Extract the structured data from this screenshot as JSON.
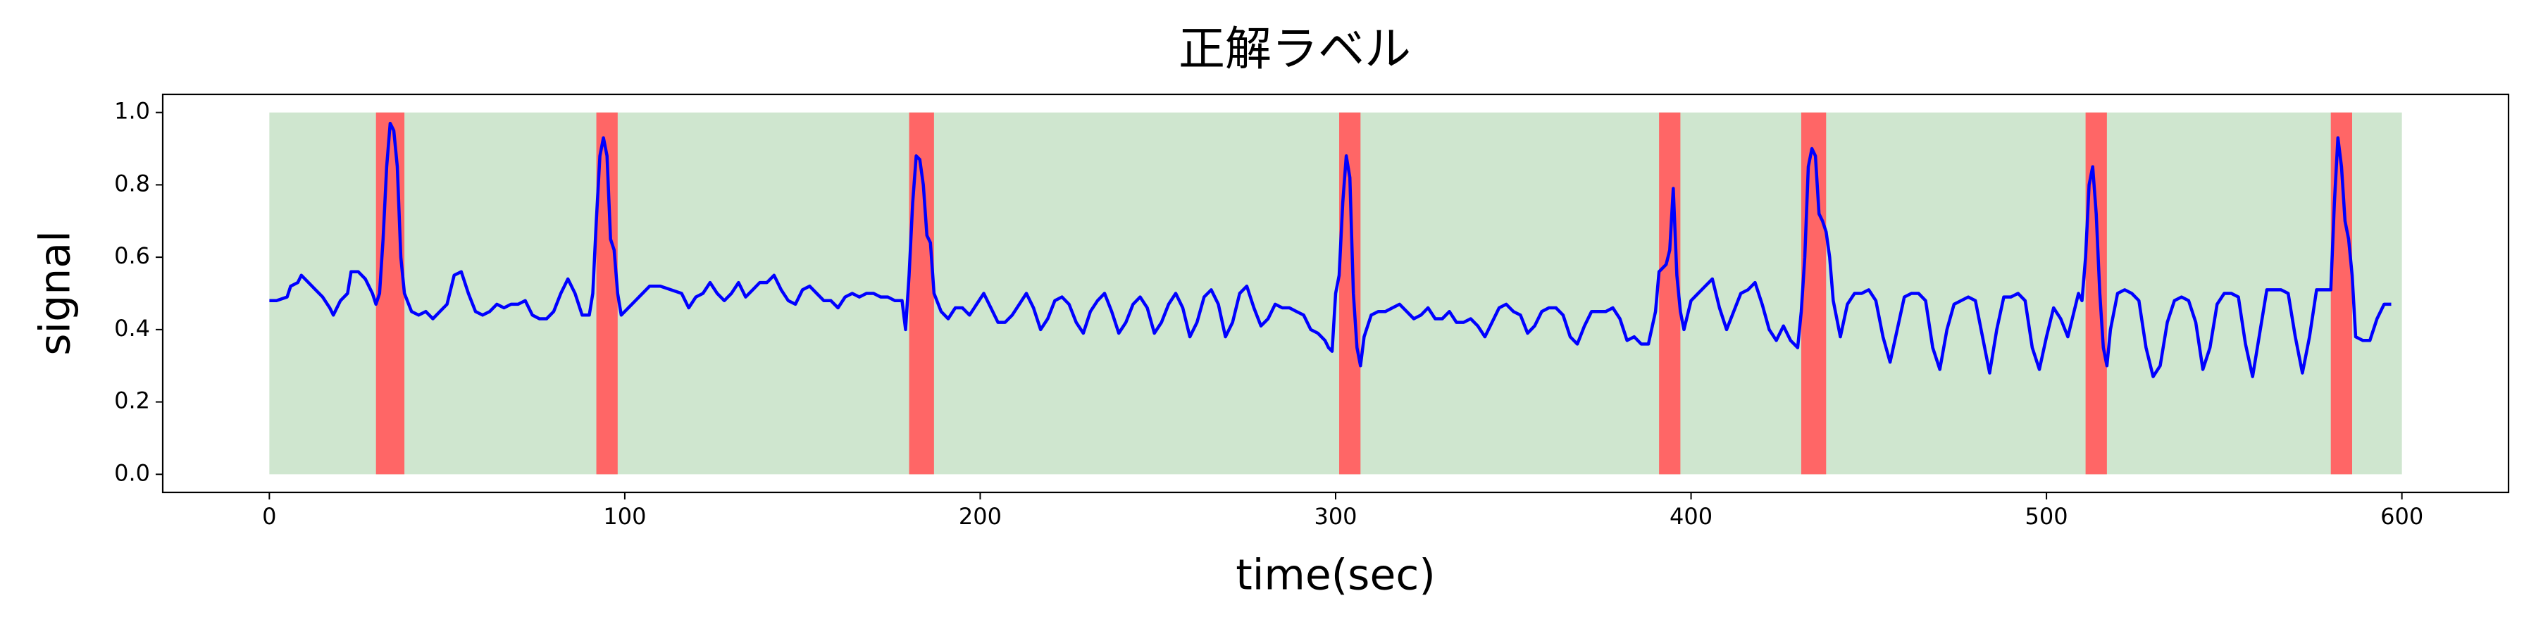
{
  "chart_data": {
    "type": "line",
    "title": "正解ラベル",
    "x_label": "time(sec)",
    "y_label": "signal",
    "xlim": [
      -30,
      630
    ],
    "ylim": [
      -0.05,
      1.05
    ],
    "xticks": [
      0,
      100,
      200,
      300,
      400,
      500,
      600
    ],
    "yticks": [
      {
        "value": 0,
        "label": "0.0"
      },
      0.2,
      0.4,
      0.6,
      0.8,
      {
        "value": 1,
        "label": "1.0"
      }
    ],
    "span_bottom": 0,
    "span_top": 1,
    "normal_span": [
      0,
      600
    ],
    "normal_color": "#cfe6cf",
    "anomaly_spans": [
      [
        30,
        38
      ],
      [
        92,
        98
      ],
      [
        180,
        187
      ],
      [
        301,
        307
      ],
      [
        391,
        397
      ],
      [
        431,
        438
      ],
      [
        511,
        517
      ],
      [
        580,
        586
      ]
    ],
    "anomaly_color": "#ff6666",
    "x": [
      0,
      2,
      5,
      6,
      8,
      9,
      11,
      13,
      15,
      17,
      18,
      20,
      22,
      23,
      25,
      27,
      29,
      30,
      31,
      32,
      33,
      34,
      35,
      36,
      37,
      38,
      40,
      42,
      44,
      46,
      48,
      50,
      52,
      54,
      56,
      58,
      60,
      62,
      64,
      66,
      68,
      70,
      72,
      74,
      76,
      78,
      80,
      82,
      84,
      86,
      88,
      90,
      91,
      92,
      93,
      94,
      95,
      96,
      97,
      98,
      99,
      101,
      103,
      105,
      107,
      110,
      113,
      116,
      118,
      120,
      122,
      124,
      126,
      128,
      130,
      132,
      134,
      136,
      138,
      140,
      142,
      144,
      146,
      148,
      150,
      152,
      154,
      156,
      158,
      160,
      162,
      164,
      166,
      168,
      170,
      172,
      174,
      176,
      178,
      179,
      180,
      181,
      182,
      183,
      184,
      185,
      186,
      187,
      189,
      191,
      193,
      195,
      197,
      199,
      201,
      203,
      205,
      207,
      209,
      211,
      213,
      215,
      217,
      219,
      221,
      223,
      225,
      227,
      229,
      231,
      233,
      235,
      237,
      239,
      241,
      243,
      245,
      247,
      249,
      251,
      253,
      255,
      257,
      259,
      261,
      263,
      265,
      267,
      269,
      271,
      273,
      275,
      277,
      279,
      281,
      283,
      285,
      287,
      289,
      291,
      293,
      295,
      297,
      298,
      299,
      300,
      301,
      302,
      303,
      304,
      305,
      306,
      307,
      308,
      310,
      312,
      314,
      316,
      318,
      320,
      322,
      324,
      326,
      328,
      330,
      332,
      334,
      336,
      338,
      340,
      342,
      344,
      346,
      348,
      350,
      352,
      354,
      356,
      358,
      360,
      362,
      364,
      366,
      368,
      370,
      372,
      374,
      376,
      378,
      380,
      382,
      384,
      386,
      388,
      390,
      391,
      393,
      394,
      395,
      396,
      397,
      398,
      400,
      402,
      404,
      406,
      408,
      410,
      412,
      414,
      416,
      418,
      420,
      422,
      424,
      426,
      428,
      430,
      431,
      432,
      433,
      434,
      435,
      436,
      437,
      438,
      439,
      440,
      442,
      444,
      446,
      448,
      450,
      452,
      454,
      456,
      458,
      460,
      462,
      464,
      466,
      468,
      470,
      472,
      474,
      476,
      478,
      480,
      482,
      484,
      486,
      488,
      490,
      492,
      494,
      496,
      498,
      500,
      502,
      504,
      506,
      508,
      509,
      510,
      511,
      512,
      513,
      514,
      515,
      516,
      517,
      518,
      520,
      522,
      524,
      526,
      528,
      530,
      532,
      534,
      536,
      538,
      540,
      542,
      544,
      546,
      548,
      550,
      552,
      554,
      556,
      558,
      560,
      562,
      564,
      566,
      568,
      570,
      572,
      574,
      576,
      578,
      580,
      581,
      582,
      583,
      584,
      585,
      586,
      587,
      589,
      591,
      593,
      595,
      597
    ],
    "series": [
      {
        "name": "signal",
        "color": "#0000ff",
        "values": [
          0.48,
          0.48,
          0.49,
          0.52,
          0.53,
          0.55,
          0.53,
          0.51,
          0.49,
          0.46,
          0.44,
          0.48,
          0.5,
          0.56,
          0.56,
          0.54,
          0.5,
          0.47,
          0.5,
          0.65,
          0.85,
          0.97,
          0.95,
          0.85,
          0.6,
          0.5,
          0.45,
          0.44,
          0.45,
          0.43,
          0.45,
          0.47,
          0.55,
          0.56,
          0.5,
          0.45,
          0.44,
          0.45,
          0.47,
          0.46,
          0.47,
          0.47,
          0.48,
          0.44,
          0.43,
          0.43,
          0.45,
          0.5,
          0.54,
          0.5,
          0.44,
          0.44,
          0.5,
          0.7,
          0.88,
          0.93,
          0.88,
          0.65,
          0.62,
          0.5,
          0.44,
          0.46,
          0.48,
          0.5,
          0.52,
          0.52,
          0.51,
          0.5,
          0.46,
          0.49,
          0.5,
          0.53,
          0.5,
          0.48,
          0.5,
          0.53,
          0.49,
          0.51,
          0.53,
          0.53,
          0.55,
          0.51,
          0.48,
          0.47,
          0.51,
          0.52,
          0.5,
          0.48,
          0.48,
          0.46,
          0.49,
          0.5,
          0.49,
          0.5,
          0.5,
          0.49,
          0.49,
          0.48,
          0.48,
          0.4,
          0.55,
          0.75,
          0.88,
          0.87,
          0.8,
          0.66,
          0.64,
          0.5,
          0.45,
          0.43,
          0.46,
          0.46,
          0.44,
          0.47,
          0.5,
          0.46,
          0.42,
          0.42,
          0.44,
          0.47,
          0.5,
          0.46,
          0.4,
          0.43,
          0.48,
          0.49,
          0.47,
          0.42,
          0.39,
          0.45,
          0.48,
          0.5,
          0.45,
          0.39,
          0.42,
          0.47,
          0.49,
          0.46,
          0.39,
          0.42,
          0.47,
          0.5,
          0.46,
          0.38,
          0.42,
          0.49,
          0.51,
          0.47,
          0.38,
          0.42,
          0.5,
          0.52,
          0.46,
          0.41,
          0.43,
          0.47,
          0.46,
          0.46,
          0.45,
          0.44,
          0.4,
          0.39,
          0.37,
          0.35,
          0.34,
          0.5,
          0.55,
          0.75,
          0.88,
          0.82,
          0.5,
          0.35,
          0.3,
          0.38,
          0.44,
          0.45,
          0.45,
          0.46,
          0.47,
          0.45,
          0.43,
          0.44,
          0.46,
          0.43,
          0.43,
          0.45,
          0.42,
          0.42,
          0.43,
          0.41,
          0.38,
          0.42,
          0.46,
          0.47,
          0.45,
          0.44,
          0.39,
          0.41,
          0.45,
          0.46,
          0.46,
          0.44,
          0.38,
          0.36,
          0.41,
          0.45,
          0.45,
          0.45,
          0.46,
          0.43,
          0.37,
          0.38,
          0.36,
          0.36,
          0.45,
          0.56,
          0.58,
          0.62,
          0.79,
          0.55,
          0.45,
          0.4,
          0.48,
          0.5,
          0.52,
          0.54,
          0.46,
          0.4,
          0.45,
          0.5,
          0.51,
          0.53,
          0.47,
          0.4,
          0.37,
          0.41,
          0.37,
          0.35,
          0.45,
          0.6,
          0.85,
          0.9,
          0.88,
          0.72,
          0.7,
          0.67,
          0.6,
          0.48,
          0.38,
          0.47,
          0.5,
          0.5,
          0.51,
          0.48,
          0.38,
          0.31,
          0.4,
          0.49,
          0.5,
          0.5,
          0.48,
          0.35,
          0.29,
          0.4,
          0.47,
          0.48,
          0.49,
          0.48,
          0.38,
          0.28,
          0.4,
          0.49,
          0.49,
          0.5,
          0.48,
          0.35,
          0.29,
          0.38,
          0.46,
          0.43,
          0.38,
          0.46,
          0.5,
          0.48,
          0.6,
          0.8,
          0.85,
          0.72,
          0.5,
          0.35,
          0.3,
          0.4,
          0.5,
          0.51,
          0.5,
          0.48,
          0.35,
          0.27,
          0.3,
          0.42,
          0.48,
          0.49,
          0.48,
          0.42,
          0.29,
          0.35,
          0.47,
          0.5,
          0.5,
          0.49,
          0.36,
          0.27,
          0.39,
          0.51,
          0.51,
          0.51,
          0.5,
          0.38,
          0.28,
          0.38,
          0.51,
          0.51,
          0.51,
          0.75,
          0.93,
          0.85,
          0.7,
          0.65,
          0.55,
          0.38,
          0.37,
          0.37,
          0.43,
          0.47,
          0.47
        ]
      }
    ]
  }
}
